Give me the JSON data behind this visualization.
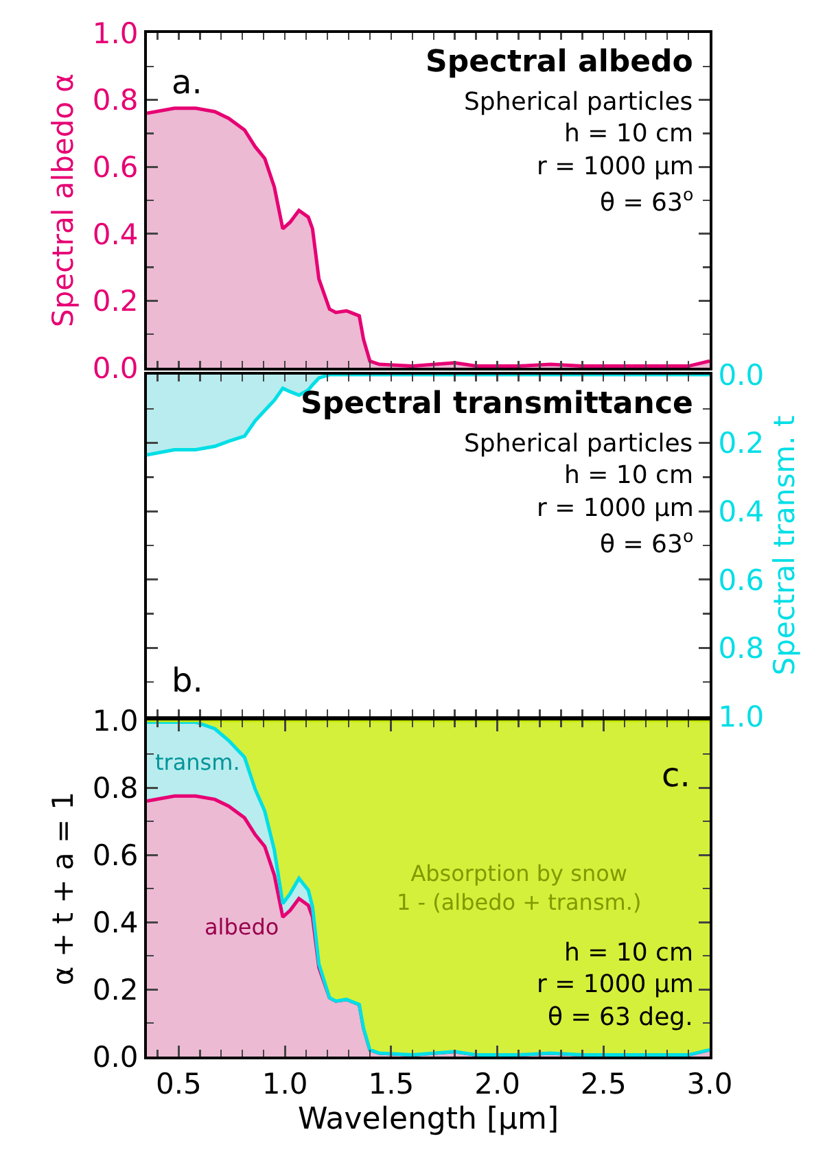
{
  "chart_data": [
    {
      "type": "area",
      "title": "Spectral albedo",
      "subtitle": "Spherical particles",
      "ylabel": "Spectral albedo α",
      "annotations": [
        "a.",
        "h = 10 cm",
        "r = 1000 μm",
        "θ = 63$^{o}$"
      ],
      "x": [
        0.35,
        0.48,
        0.58,
        0.67,
        0.735,
        0.81,
        0.86,
        0.905,
        0.95,
        0.99,
        1.025,
        1.066,
        1.11,
        1.13,
        1.16,
        1.21,
        1.24,
        1.29,
        1.35,
        1.37,
        1.4,
        1.445,
        1.6,
        1.8,
        1.9,
        2.1,
        2.25,
        2.4,
        2.7,
        2.9,
        3.0
      ],
      "series": [
        {
          "color": "#ecbad3",
          "values": [
            0.76,
            0.775,
            0.775,
            0.765,
            0.745,
            0.71,
            0.66,
            0.625,
            0.54,
            0.415,
            0.435,
            0.47,
            0.45,
            0.415,
            0.265,
            0.175,
            0.165,
            0.17,
            0.155,
            0.085,
            0.02,
            0.01,
            0.005,
            0.015,
            0.005,
            0.005,
            0.01,
            0.005,
            0.005,
            0.005,
            0.02
          ]
        }
      ],
      "xlim": [
        0.35,
        3.0
      ],
      "xticks": [
        {
          "value": 0.5,
          "label": null
        },
        {
          "value": 1,
          "label": null
        },
        {
          "value": 1.5,
          "label": null
        },
        {
          "value": 2,
          "label": null
        },
        {
          "value": 2.5,
          "label": null
        },
        {
          "value": 3,
          "label": null
        }
      ],
      "ylim": [
        0,
        1
      ],
      "yticks": [
        {
          "value": 0,
          "label": "0.0"
        },
        {
          "value": 0.2,
          "label": "0.2"
        },
        {
          "value": 0.4,
          "label": "0.4"
        },
        {
          "value": 0.6,
          "label": "0.6"
        },
        {
          "value": 0.8,
          "label": "0.8"
        },
        {
          "value": 1,
          "label": "1.0"
        }
      ],
      "tick_labels": "y",
      "grid": false,
      "legend": false,
      "marker": "none",
      "line_style": "solid"
    },
    {
      "type": "area",
      "title": "Spectral transmittance",
      "subtitle": "Spherical particles",
      "y2label": "Spectral transm. t",
      "annotations": [
        "b.",
        "h = 10 cm",
        "r = 1000 μm",
        "θ = 63$^{o}$"
      ],
      "x": [
        0.35,
        0.48,
        0.58,
        0.67,
        0.735,
        0.81,
        0.86,
        0.905,
        0.95,
        0.99,
        1.025,
        1.066,
        1.11,
        1.13,
        1.16,
        1.21,
        1.24,
        1.29,
        1.35,
        1.37,
        1.4,
        1.445,
        1.6,
        1.8,
        1.9,
        2.1,
        2.25,
        2.4,
        2.7,
        2.9,
        3.0
      ],
      "series": [
        {
          "color": "#b8ecee",
          "axis": "y2",
          "values": [
            0.235,
            0.22,
            0.22,
            0.21,
            0.195,
            0.18,
            0.135,
            0.105,
            0.075,
            0.04,
            0.05,
            0.06,
            0.045,
            0.03,
            0.01,
            0,
            0,
            0,
            0,
            0,
            0,
            0,
            0,
            0,
            0,
            0,
            0,
            0,
            0,
            0,
            0
          ]
        }
      ],
      "xlim": [
        0.35,
        3.0
      ],
      "xticks": [
        {
          "value": 0.5,
          "label": null
        },
        {
          "value": 1,
          "label": null
        },
        {
          "value": 1.5,
          "label": null
        },
        {
          "value": 2,
          "label": null
        },
        {
          "value": 2.5,
          "label": null
        },
        {
          "value": 3,
          "label": null
        }
      ],
      "y2lim": [
        1,
        0
      ],
      "y2ticks": [
        {
          "value": 0,
          "label": "0.0"
        },
        {
          "value": 0.2,
          "label": "0.2"
        },
        {
          "value": 0.4,
          "label": "0.4"
        },
        {
          "value": 0.6,
          "label": "0.6"
        },
        {
          "value": 0.8,
          "label": "0.8"
        },
        {
          "value": 1,
          "label": "1.0"
        }
      ],
      "tick_labels": "y",
      "grid": false,
      "legend": false,
      "marker": "none",
      "line_style": "solid"
    },
    {
      "type": "area",
      "stacked": true,
      "xlabel": "Wavelength [μm]",
      "ylabel": "α + t + a = 1",
      "annotations": [
        "c.",
        "h = 10 cm",
        "r = 1000 μm",
        "θ = 63 deg."
      ],
      "x": [
        0.35,
        0.48,
        0.58,
        0.67,
        0.735,
        0.81,
        0.86,
        0.905,
        0.95,
        0.99,
        1.025,
        1.066,
        1.11,
        1.13,
        1.16,
        1.21,
        1.24,
        1.29,
        1.35,
        1.37,
        1.4,
        1.445,
        1.6,
        1.8,
        1.9,
        2.1,
        2.25,
        2.4,
        2.7,
        2.9,
        3.0
      ],
      "series": [
        {
          "name": "albedo",
          "color": "#ecbad3",
          "values": [
            0.76,
            0.775,
            0.775,
            0.765,
            0.745,
            0.71,
            0.66,
            0.625,
            0.54,
            0.415,
            0.435,
            0.47,
            0.45,
            0.415,
            0.265,
            0.175,
            0.165,
            0.17,
            0.155,
            0.085,
            0.02,
            0.01,
            0.005,
            0.015,
            0.005,
            0.005,
            0.01,
            0.005,
            0.005,
            0.005,
            0.02
          ]
        },
        {
          "name": "transm.",
          "color": "#b8ecee",
          "values": [
            0.235,
            0.22,
            0.22,
            0.21,
            0.195,
            0.18,
            0.135,
            0.105,
            0.075,
            0.04,
            0.05,
            0.06,
            0.045,
            0.03,
            0.01,
            0,
            0,
            0,
            0,
            0,
            0,
            0,
            0,
            0,
            0,
            0,
            0,
            0,
            0,
            0,
            0
          ]
        },
        {
          "name": "Absorption by snow\n1 - (albedo + transm.)",
          "color": "#d4f03a",
          "values": [
            0.005,
            0.005,
            0.005,
            0.025,
            0.06,
            0.11,
            0.205,
            0.27,
            0.385,
            0.545,
            0.515,
            0.47,
            0.505,
            0.555,
            0.725,
            0.825,
            0.835,
            0.83,
            0.845,
            0.915,
            0.98,
            0.99,
            0.995,
            0.985,
            0.995,
            0.995,
            0.99,
            0.995,
            0.995,
            0.995,
            0.98
          ]
        }
      ],
      "xlim": [
        0.35,
        3.0
      ],
      "xticks": [
        {
          "value": 0.5,
          "label": "0.5"
        },
        {
          "value": 1,
          "label": "1.0"
        },
        {
          "value": 1.5,
          "label": "1.5"
        },
        {
          "value": 2,
          "label": "2.0"
        },
        {
          "value": 2.5,
          "label": "2.5"
        },
        {
          "value": 3,
          "label": "3.0"
        }
      ],
      "ylim": [
        0,
        1
      ],
      "yticks": [
        {
          "value": 0,
          "label": "0.0"
        },
        {
          "value": 0.2,
          "label": "0.2"
        },
        {
          "value": 0.4,
          "label": "0.4"
        },
        {
          "value": 0.6,
          "label": "0.6"
        },
        {
          "value": 0.8,
          "label": "0.8"
        },
        {
          "value": 1,
          "label": "1.0"
        }
      ],
      "grid": false,
      "legend": false,
      "marker": "none",
      "line_style": "solid"
    }
  ]
}
